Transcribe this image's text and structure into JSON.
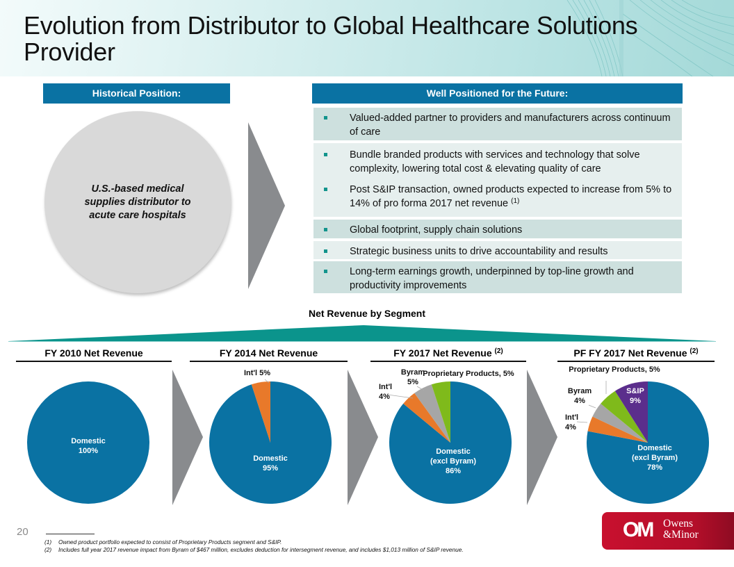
{
  "title": "Evolution from Distributor to Global Healthcare Solutions Provider",
  "historical": {
    "header": "Historical Position:",
    "description": "U.S.-based medical supplies distributor to acute care hospitals"
  },
  "future": {
    "header": "Well Positioned for the Future:",
    "groups": [
      {
        "shade": "dark",
        "items": [
          {
            "text": "Valued-added partner to providers and manufacturers across continuum of care",
            "sup": ""
          }
        ]
      },
      {
        "shade": "light",
        "items": [
          {
            "text": "Bundle branded products with services and technology that solve complexity, lowering total cost & elevating quality of care",
            "sup": ""
          },
          {
            "text": "Post S&IP transaction, owned products expected to increase from 5% to 14% of pro forma 2017 net revenue",
            "sup": "(1)"
          }
        ]
      },
      {
        "shade": "dark",
        "items": [
          {
            "text": "Global footprint, supply chain solutions",
            "sup": ""
          }
        ]
      },
      {
        "shade": "light",
        "items": [
          {
            "text": "Strategic business units to drive accountability and results",
            "sup": ""
          }
        ]
      },
      {
        "shade": "dark",
        "items": [
          {
            "text": "Long-term earnings growth, underpinned by top-line growth and productivity improvements",
            "sup": ""
          }
        ]
      }
    ]
  },
  "segment_title": "Net Revenue by Segment",
  "colors": {
    "domestic": "#0a72a3",
    "intl": "#e8792a",
    "byram": "#a6a6a6",
    "proprietary": "#7fba1b",
    "sip": "#5b2e8c",
    "header_bar": "#0a72a3",
    "teal": "#0b948c",
    "chevron": "#898b8e"
  },
  "chart_data": [
    {
      "type": "pie",
      "title": "FY 2010 Net Revenue",
      "title_sup": "",
      "slices": [
        {
          "label": "Domestic",
          "value": 100,
          "display": "Domestic\n100%",
          "color_key": "domestic"
        }
      ]
    },
    {
      "type": "pie",
      "title": "FY 2014 Net Revenue",
      "title_sup": "",
      "slices": [
        {
          "label": "Domestic",
          "value": 95,
          "display": "Domestic\n95%",
          "color_key": "domestic"
        },
        {
          "label": "Int'l",
          "value": 5,
          "display": "Int'l 5%",
          "color_key": "intl"
        }
      ]
    },
    {
      "type": "pie",
      "title": "FY 2017 Net Revenue",
      "title_sup": "(2)",
      "slices": [
        {
          "label": "Domestic (excl Byram)",
          "value": 86,
          "display": "Domestic\n(excl Byram)\n86%",
          "color_key": "domestic"
        },
        {
          "label": "Int'l",
          "value": 4,
          "display": "Int'l\n4%",
          "color_key": "intl"
        },
        {
          "label": "Byram",
          "value": 5,
          "display": "Byram\n5%",
          "color_key": "byram"
        },
        {
          "label": "Proprietary Products",
          "value": 5,
          "display": "Proprietary Products, 5%",
          "color_key": "proprietary"
        }
      ]
    },
    {
      "type": "pie",
      "title": "PF FY 2017 Net Revenue",
      "title_sup": "(2)",
      "slices": [
        {
          "label": "Domestic (excl Byram)",
          "value": 78,
          "display": "Domestic\n(excl Byram)\n78%",
          "color_key": "domestic"
        },
        {
          "label": "Int'l",
          "value": 4,
          "display": "Int'l\n4%",
          "color_key": "intl"
        },
        {
          "label": "Byram",
          "value": 4,
          "display": "Byram\n4%",
          "color_key": "byram"
        },
        {
          "label": "Proprietary Products",
          "value": 5,
          "display": "Proprietary Products, 5%",
          "color_key": "proprietary"
        },
        {
          "label": "S&IP",
          "value": 9,
          "display": "S&IP\n9%",
          "color_key": "sip"
        }
      ]
    }
  ],
  "footer": {
    "page_number": "20",
    "footnotes": [
      {
        "num": "(1)",
        "text": "Owned product portfolio expected to consist of Proprietary Products segment and S&IP."
      },
      {
        "num": "(2)",
        "text": "Includes full year 2017 revenue impact from Byram of $467 million, excludes deduction for intersegment revenue, and includes $1,013 million of S&IP revenue."
      }
    ],
    "logo": {
      "mark": "OM",
      "line1": "Owens",
      "line2": "&Minor"
    }
  }
}
